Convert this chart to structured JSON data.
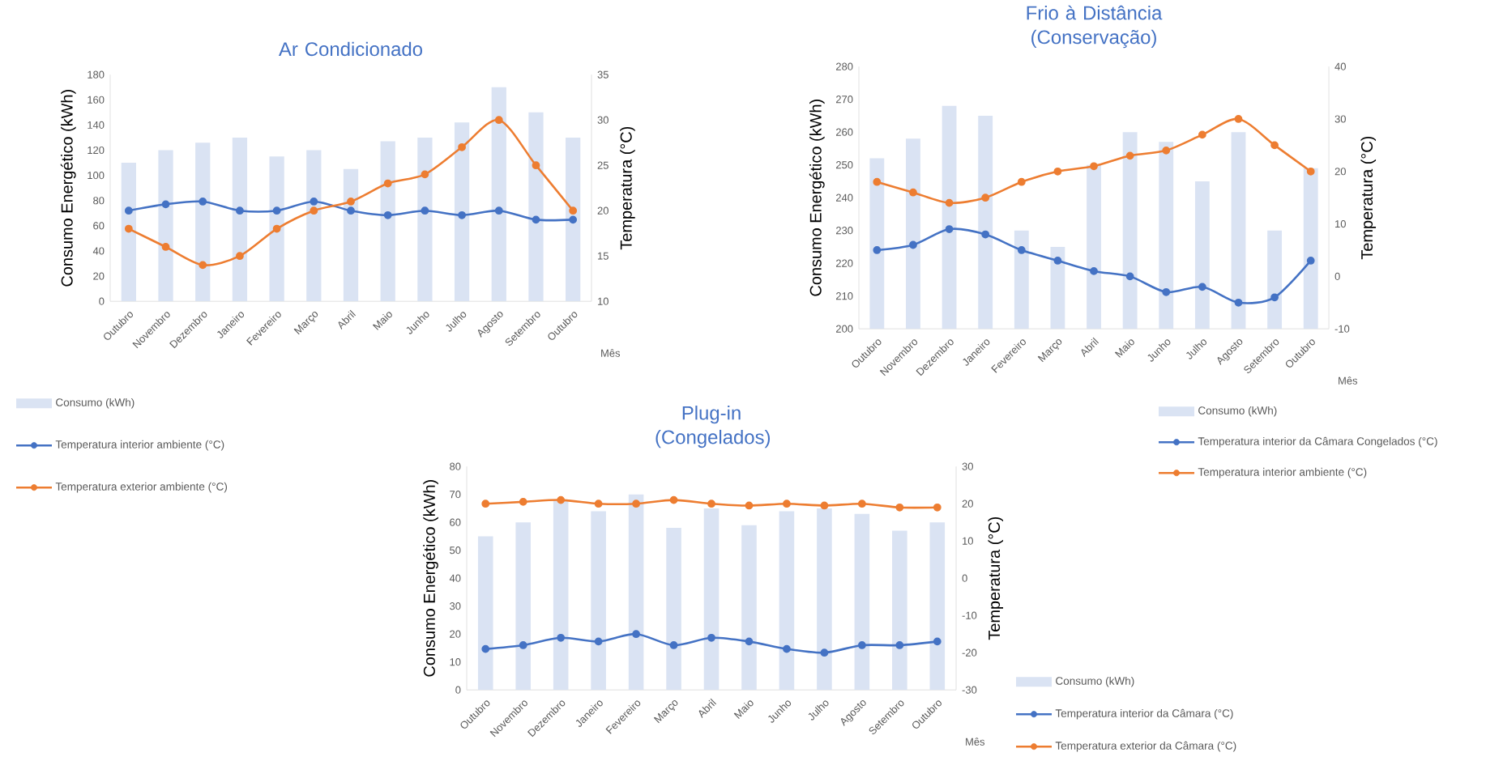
{
  "chart_data": [
    {
      "type": "bar",
      "title": "Ar Condicionado",
      "xlabel": "Mês",
      "ylabel": "Consumo Energético (kWh)",
      "y2label": "Temperatura (°C)",
      "categories": [
        "Outubro",
        "Novembro",
        "Dezembro",
        "Janeiro",
        "Fevereiro",
        "Março",
        "Abril",
        "Maio",
        "Junho",
        "Julho",
        "Agosto",
        "Setembro",
        "Outubro"
      ],
      "ylim": [
        0,
        180
      ],
      "yticks": [
        0,
        20,
        40,
        60,
        80,
        100,
        120,
        140,
        160,
        180
      ],
      "y2lim": [
        10,
        35
      ],
      "y2ticks": [
        10,
        15,
        20,
        25,
        30,
        35
      ],
      "legend": "bottom left",
      "marker": "circle",
      "series": [
        {
          "name": "Consumo (kWh)",
          "color": "#dae3f3",
          "values": [
            110,
            120,
            126,
            130,
            115,
            120,
            105,
            127,
            130,
            142,
            170,
            150,
            130
          ]
        },
        {
          "name": "Temperatura interior ambiente (°C)",
          "type": "line",
          "axis": "y2",
          "color": "#4472c4",
          "values": [
            20,
            20.7,
            21,
            20,
            20,
            21,
            20,
            19.5,
            20,
            19.5,
            20,
            19,
            19
          ]
        },
        {
          "name": "Temperatura exterior ambiente (°C)",
          "type": "line",
          "axis": "y2",
          "color": "#ed7d31",
          "values": [
            18,
            16,
            14,
            15,
            18,
            20,
            21,
            23,
            24,
            27,
            30,
            25,
            20
          ]
        }
      ]
    },
    {
      "type": "bar",
      "title": "Frio à Distância (Conservação)",
      "xlabel": "Mês",
      "ylabel": "Consumo Energético (kWh)",
      "y2label": "Temperatura (°C)",
      "categories": [
        "Outubro",
        "Novembro",
        "Dezembro",
        "Janeiro",
        "Fevereiro",
        "Março",
        "Abril",
        "Maio",
        "Junho",
        "Julho",
        "Agosto",
        "Setembro",
        "Outubro"
      ],
      "ylim": [
        200,
        280
      ],
      "yticks": [
        200,
        210,
        220,
        230,
        240,
        250,
        260,
        270,
        280
      ],
      "y2lim": [
        -10,
        40
      ],
      "y2ticks": [
        -10,
        0,
        10,
        20,
        30,
        40
      ],
      "legend": "bottom right",
      "marker": "circle",
      "series": [
        {
          "name": "Consumo (kWh)",
          "color": "#dae3f3",
          "values": [
            252,
            258,
            268,
            265,
            230,
            225,
            250,
            260,
            257,
            245,
            260,
            230,
            249
          ]
        },
        {
          "name": "Temperatura interior da Câmara Congelados (°C)",
          "type": "line",
          "axis": "y2",
          "color": "#4472c4",
          "values": [
            5,
            6,
            9,
            8,
            5,
            3,
            1,
            0,
            -3,
            -2,
            -5,
            -4,
            3
          ]
        },
        {
          "name": "Temperatura interior ambiente (°C)",
          "type": "line",
          "axis": "y2",
          "color": "#ed7d31",
          "values": [
            18,
            16,
            14,
            15,
            18,
            20,
            21,
            23,
            24,
            27,
            30,
            25,
            20
          ]
        }
      ]
    },
    {
      "type": "bar",
      "title": "Plug-in (Congelados)",
      "xlabel": "Mês",
      "ylabel": "Consumo Energético (kWh)",
      "y2label": "Temperatura (°C)",
      "categories": [
        "Outubro",
        "Novembro",
        "Dezembro",
        "Janeiro",
        "Fevereiro",
        "Março",
        "Abril",
        "Maio",
        "Junho",
        "Julho",
        "Agosto",
        "Setembro",
        "Outubro"
      ],
      "ylim": [
        0,
        80
      ],
      "yticks": [
        0,
        10,
        20,
        30,
        40,
        50,
        60,
        70,
        80
      ],
      "y2lim": [
        -30,
        30
      ],
      "y2ticks": [
        -30,
        -20,
        -10,
        0,
        10,
        20,
        30
      ],
      "legend": "right",
      "marker": "circle",
      "series": [
        {
          "name": "Consumo (kWh)",
          "color": "#dae3f3",
          "values": [
            55,
            60,
            68,
            64,
            70,
            58,
            65,
            59,
            64,
            65,
            63,
            57,
            60
          ]
        },
        {
          "name": "Temperatura interior da Câmara (°C)",
          "type": "line",
          "axis": "y2",
          "color": "#4472c4",
          "values": [
            -19,
            -18,
            -16,
            -17,
            -15,
            -18,
            -16,
            -17,
            -19,
            -20,
            -18,
            -18,
            -17
          ]
        },
        {
          "name": "Temperatura exterior da Câmara (°C)",
          "type": "line",
          "axis": "y2",
          "color": "#ed7d31",
          "values": [
            20,
            20.5,
            21,
            20,
            20,
            21,
            20,
            19.5,
            20,
            19.5,
            20,
            19,
            19
          ]
        }
      ]
    }
  ]
}
